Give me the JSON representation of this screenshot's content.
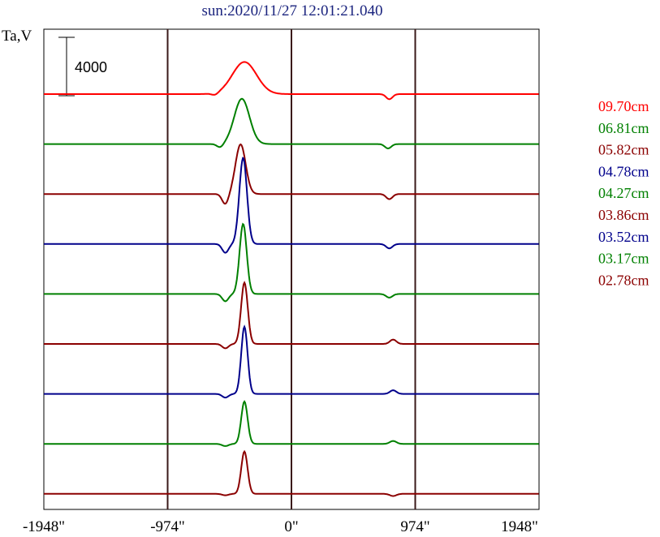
{
  "chart_data": {
    "type": "line",
    "title": "sun:2020/11/27 12:01:21.040",
    "ylabel": "Ta,V",
    "scale_bar_label": "4000",
    "scale_bar_value": 4000,
    "xlim": [
      -1948,
      1948
    ],
    "x_ticks": [
      {
        "value": -1948,
        "label": "-1948\""
      },
      {
        "value": -974,
        "label": "-974\""
      },
      {
        "value": 0,
        "label": "0\""
      },
      {
        "value": 974,
        "label": "974\""
      },
      {
        "value": 1948,
        "label": "1948\""
      }
    ],
    "vertical_gridlines": [
      -974,
      0,
      974
    ],
    "series": [
      {
        "name": "09.70cm",
        "color": "#ff0000",
        "peak_x": -370,
        "peak": 2200,
        "width": 95,
        "dip_x": 770,
        "dip": -350,
        "side_x": -600,
        "side": -150
      },
      {
        "name": "06.81cm",
        "color": "#008000",
        "peak_x": -390,
        "peak": 3100,
        "width": 60,
        "dip_x": 760,
        "dip": -300,
        "side_x": -560,
        "side": -250
      },
      {
        "name": "05.82cm",
        "color": "#8b0000",
        "peak_x": -400,
        "peak": 3400,
        "width": 40,
        "dip_x": 770,
        "dip": -350,
        "side_x": -520,
        "side": -700
      },
      {
        "name": "04.78cm",
        "color": "#00008b",
        "peak_x": -380,
        "peak": 5900,
        "width": 30,
        "dip_x": 770,
        "dip": -300,
        "side_x": -520,
        "side": -600
      },
      {
        "name": "04.27cm",
        "color": "#008000",
        "peak_x": -380,
        "peak": 4800,
        "width": 28,
        "dip_x": 770,
        "dip": -250,
        "side_x": -520,
        "side": -500
      },
      {
        "name": "03.86cm",
        "color": "#8b0000",
        "peak_x": -370,
        "peak": 4200,
        "width": 26,
        "dip_x": 800,
        "dip": 300,
        "side_x": -520,
        "side": -300
      },
      {
        "name": "03.52cm",
        "color": "#00008b",
        "peak_x": -370,
        "peak": 4600,
        "width": 25,
        "dip_x": 800,
        "dip": 250,
        "side_x": -520,
        "side": -250
      },
      {
        "name": "03.17cm",
        "color": "#008000",
        "peak_x": -370,
        "peak": 2900,
        "width": 25,
        "dip_x": 800,
        "dip": 200,
        "side_x": -520,
        "side": -150
      },
      {
        "name": "02.78cm",
        "color": "#8b0000",
        "peak_x": -370,
        "peak": 2900,
        "width": 25,
        "dip_x": 800,
        "dip": -150,
        "side_x": -520,
        "side": -100
      }
    ]
  }
}
